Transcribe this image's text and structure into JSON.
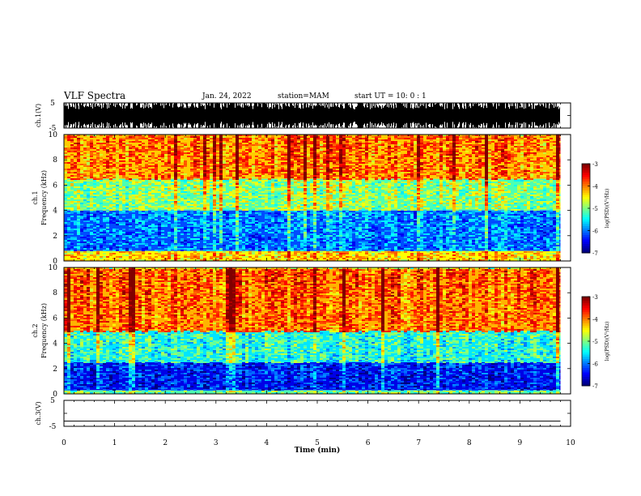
{
  "header": {
    "title": "VLF Spectra",
    "date": "Jan. 24, 2022",
    "station": "station=MAM",
    "start": "start UT =  10: 0 : 1"
  },
  "chart_data": [
    {
      "type": "line",
      "name": "ch1-waveform",
      "ylabel": "ch.1(V)",
      "ylim": [
        -5,
        5
      ],
      "yticks": [
        "5",
        "-5"
      ],
      "note": "dense impulsive waveform spanning nearly the full ±5 V range"
    },
    {
      "type": "heatmap",
      "name": "ch1-spectrogram",
      "ylabel": "ch.1\nFrequency (kHz)",
      "ylim": [
        0,
        10
      ],
      "yticks": [
        0,
        2,
        4,
        6,
        8,
        10
      ],
      "colorbar": {
        "label": "log(PSD)(V²/Hz)",
        "range": [
          -7,
          -3
        ],
        "ticks": [
          -3,
          -4,
          -5,
          -6,
          -7
        ]
      },
      "bands": [
        {
          "from_khz": 0,
          "to_khz": 0.8,
          "log_psd": -4.5
        },
        {
          "from_khz": 0.8,
          "to_khz": 4,
          "log_psd": -6.2
        },
        {
          "from_khz": 4,
          "to_khz": 6.5,
          "log_psd": -5.2
        },
        {
          "from_khz": 6.5,
          "to_khz": 10,
          "log_psd": -4.3
        }
      ]
    },
    {
      "type": "heatmap",
      "name": "ch2-spectrogram",
      "ylabel": "ch.2\nFrequency (kHz)",
      "ylim": [
        0,
        10
      ],
      "yticks": [
        0,
        2,
        4,
        6,
        8,
        10
      ],
      "colorbar": {
        "label": "log(PSD)(V²/Hz)",
        "range": [
          -7,
          -3
        ],
        "ticks": [
          -3,
          -4,
          -5,
          -6,
          -7
        ]
      },
      "bands": [
        {
          "from_khz": 0,
          "to_khz": 0.3,
          "log_psd": -5.2
        },
        {
          "from_khz": 0.3,
          "to_khz": 2.5,
          "log_psd": -6.6
        },
        {
          "from_khz": 2.5,
          "to_khz": 5,
          "log_psd": -5.6
        },
        {
          "from_khz": 5,
          "to_khz": 10,
          "log_psd": -4.2
        }
      ]
    },
    {
      "type": "line",
      "name": "ch3-waveform",
      "ylabel": "ch.3(V)",
      "ylim": [
        -5,
        5
      ],
      "yticks": [
        "5",
        "-5"
      ],
      "x": [
        0,
        9.8
      ],
      "y": [
        -3,
        -3
      ]
    }
  ],
  "xaxis": {
    "label": "Time (min)",
    "range": [
      0,
      10
    ],
    "ticks": [
      0,
      1,
      2,
      3,
      4,
      5,
      6,
      7,
      8,
      9,
      10
    ],
    "data_end_min": 9.8
  }
}
